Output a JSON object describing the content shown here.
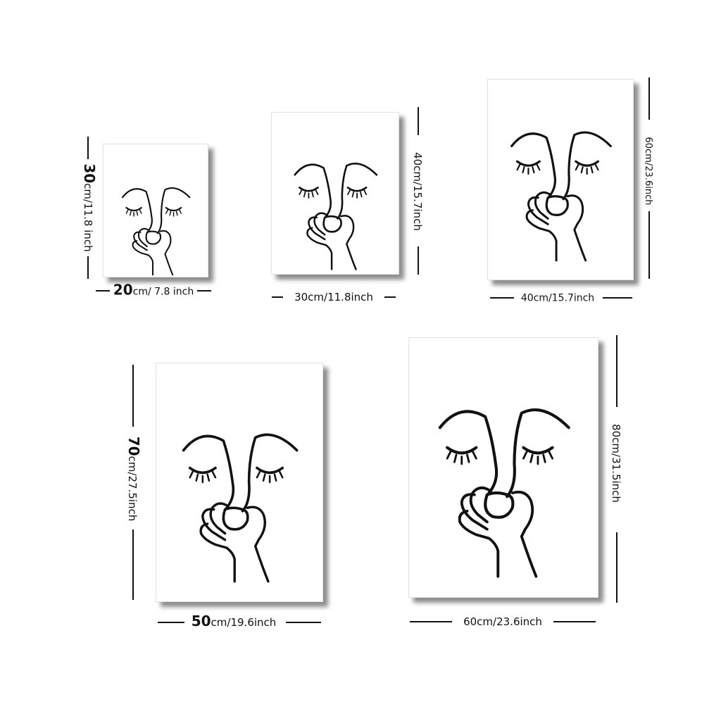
{
  "sizes": [
    {
      "width_label_num": "20",
      "width_label_rest": "cm/ 7.8 inch",
      "height_label_num": "30",
      "height_label_rest": "cm/11.8 inch"
    },
    {
      "width_label_num": "",
      "width_label_rest": "30cm/11.8inch",
      "height_label_num": "",
      "height_label_rest": "40cm/15.7inch"
    },
    {
      "width_label_num": "",
      "width_label_rest": "40cm/15.7inch",
      "height_label_num": "",
      "height_label_rest": "60cm/23.6inch"
    },
    {
      "width_label_num": "50",
      "width_label_rest": "cm/19.6inch",
      "height_label_num": "70",
      "height_label_rest": "cm/27.5inch"
    },
    {
      "width_label_num": "",
      "width_label_rest": "60cm/23.6inch",
      "height_label_num": "",
      "height_label_rest": "80cm/31.5inch"
    }
  ],
  "artwork": "line-art-face-with-hand",
  "colors": {
    "background": "#ffffff",
    "line": "#111111"
  }
}
